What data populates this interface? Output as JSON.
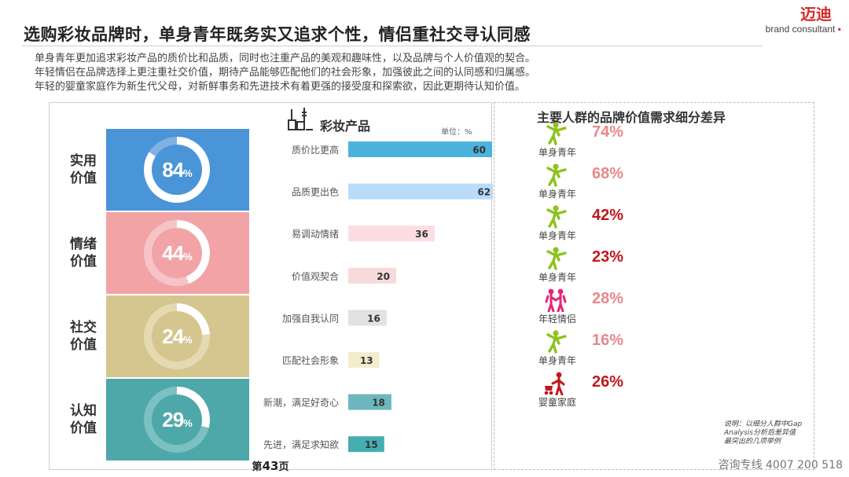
{
  "header": {
    "title": "选购彩妆品牌时，单身青年既务实又追求个性，情侣重社交寻认同感",
    "brand_logo": "迈迪",
    "brand_sub": "brand consultant"
  },
  "intro_lines": [
    "单身青年更加追求彩妆产品的质价比和品质，同时也注重产品的美观和趣味性，以及品牌与个人价值观的契合。",
    "年轻情侣在品牌选择上更注重社交价值，期待产品能够匹配他们的社会形象，加强彼此之间的认同感和归属感。",
    "年轻的婴童家庭作为新生代父母，对新鲜事务和先进技术有着更强的接受度和探索欲，因此更期待认知价值。"
  ],
  "value_categories": [
    {
      "label": "实用价值",
      "line1": "实用",
      "line2": "价值",
      "percent": 84,
      "pct_text": "84",
      "color": "#4a94d8",
      "ring_track": "#7fb1e3",
      "ring_fill": "#ffffff"
    },
    {
      "label": "情绪价值",
      "line1": "情绪",
      "line2": "价值",
      "percent": 44,
      "pct_text": "44",
      "color": "#f2a3a6",
      "ring_track": "#f6c4c6",
      "ring_fill": "#ffffff"
    },
    {
      "label": "社交价值",
      "line1": "社交",
      "line2": "价值",
      "percent": 24,
      "pct_text": "24",
      "color": "#d5c690",
      "ring_track": "#e4d9b0",
      "ring_fill": "#ffffff"
    },
    {
      "label": "认知价值",
      "line1": "认知",
      "line2": "价值",
      "percent": 29,
      "pct_text": "29",
      "color": "#4ea8a9",
      "ring_track": "#7cc0c1",
      "ring_fill": "#ffffff"
    }
  ],
  "pct_sign": "%",
  "product_title": "彩妆产品",
  "unit_label": "单位：%",
  "chart_data": {
    "type": "bar",
    "orientation": "horizontal",
    "title": "彩妆产品",
    "unit": "%",
    "categories": [
      "质价比更高",
      "品质更出色",
      "易调动情绪",
      "价值观契合",
      "加强自我认同",
      "匹配社会形象",
      "新潮，满足好奇心",
      "先进，满足求知欲"
    ],
    "values": [
      60,
      62,
      36,
      20,
      16,
      13,
      18,
      15
    ],
    "colors": [
      "#4bb3dc",
      "#b8dcfa",
      "#fcdde2",
      "#f8dada",
      "#e2e2e2",
      "#f4edcc",
      "#6cb7bd",
      "#45aeb0"
    ],
    "xlim": [
      0,
      80
    ]
  },
  "page_number": {
    "prefix": "第",
    "num": "43",
    "suffix": "页"
  },
  "groups_title": "主要人群的品牌价值需求细分差异",
  "groups": [
    {
      "name": "单身青年",
      "percent": "74%",
      "icon": "single-youth-icon",
      "color": "#e8878a"
    },
    {
      "name": "单身青年",
      "percent": "68%",
      "icon": "single-youth-icon",
      "color": "#e8878a"
    },
    {
      "name": "单身青年",
      "percent": "42%",
      "icon": "single-youth-icon",
      "color": "#c0161c"
    },
    {
      "name": "单身青年",
      "percent": "23%",
      "icon": "single-youth-icon",
      "color": "#c0161c"
    },
    {
      "name": "年轻情侣",
      "percent": "28%",
      "icon": "couple-icon",
      "color": "#e8878a"
    },
    {
      "name": "单身青年",
      "percent": "16%",
      "icon": "single-youth-icon",
      "color": "#e8878a"
    },
    {
      "name": "婴童家庭",
      "percent": "26%",
      "icon": "family-icon",
      "color": "#c0161c"
    }
  ],
  "note": "说明：以细分人群中Gap Analysis分析后差异值最突出的几项举例",
  "hotline": "咨询专线  4007 200 518"
}
